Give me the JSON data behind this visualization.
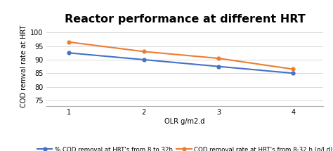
{
  "title": "Reactor performance at different HRT",
  "xlabel": "OLR g/m2.d",
  "ylabel": "COD remval rate at HRT",
  "x": [
    1,
    2,
    3,
    4
  ],
  "blue_y": [
    92.5,
    90.0,
    87.5,
    85.0
  ],
  "orange_y": [
    96.5,
    93.0,
    90.5,
    86.5
  ],
  "blue_label": "% COD removal at HRT's from 8 to 32h",
  "orange_label": "COD removal rate at HRT's from 8-32 h (g/l.d)",
  "blue_color": "#4472C4",
  "orange_color": "#ED7D31",
  "ylim": [
    73,
    102
  ],
  "yticks": [
    75,
    80,
    85,
    90,
    95,
    100
  ],
  "xticks": [
    1,
    2,
    3,
    4
  ],
  "background_color": "#ffffff",
  "title_fontsize": 11.5,
  "label_fontsize": 7,
  "tick_fontsize": 7,
  "legend_fontsize": 6.2
}
